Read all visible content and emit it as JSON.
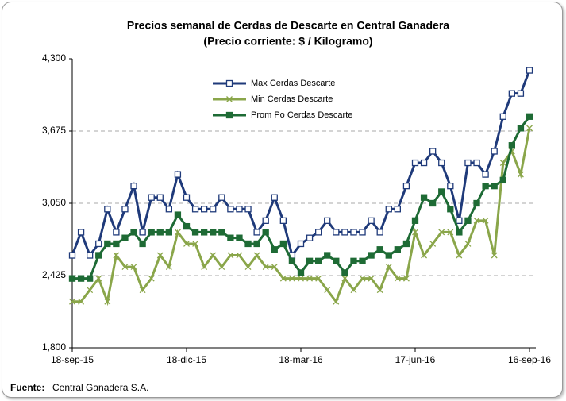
{
  "chart_data": {
    "type": "line",
    "title": "Precios semanal de Cerdas de Descarte en Central Ganadera",
    "subtitle": "(Precio corriente: $ / Kilogramo)",
    "categories": [
      "18-sep-15",
      null,
      null,
      null,
      null,
      null,
      null,
      null,
      null,
      null,
      null,
      null,
      null,
      "18-dic-15",
      null,
      null,
      null,
      null,
      null,
      null,
      null,
      null,
      null,
      null,
      null,
      null,
      "18-mar-16",
      null,
      null,
      null,
      null,
      null,
      null,
      null,
      null,
      null,
      null,
      null,
      null,
      "17-jun-16",
      null,
      null,
      null,
      null,
      null,
      null,
      null,
      null,
      null,
      null,
      null,
      null,
      "16-sep-16"
    ],
    "series": [
      {
        "name": "Max Cerdas Descarte",
        "color": "#1f3a7a",
        "marker": "square-open",
        "values": [
          2600,
          2800,
          2600,
          2700,
          3000,
          2800,
          3000,
          3200,
          2800,
          3100,
          3100,
          3000,
          3300,
          3100,
          3000,
          3000,
          3000,
          3100,
          3000,
          3000,
          3000,
          2800,
          2900,
          3100,
          2900,
          2600,
          2700,
          2750,
          2800,
          2900,
          2800,
          2800,
          2800,
          2800,
          2900,
          2800,
          3000,
          3000,
          3200,
          3400,
          3400,
          3500,
          3400,
          3200,
          2900,
          3400,
          3400,
          3300,
          3500,
          3800,
          4000,
          4000,
          4200
        ]
      },
      {
        "name": "Min Cerdas Descarte",
        "color": "#8aa64a",
        "marker": "x",
        "values": [
          2200,
          2200,
          2300,
          2400,
          2200,
          2600,
          2500,
          2500,
          2300,
          2400,
          2600,
          2500,
          2800,
          2700,
          2700,
          2500,
          2600,
          2500,
          2600,
          2600,
          2500,
          2600,
          2500,
          2500,
          2400,
          2400,
          2400,
          2400,
          2400,
          2300,
          2200,
          2400,
          2300,
          2400,
          2400,
          2300,
          2500,
          2400,
          2400,
          2800,
          2600,
          2700,
          2800,
          2800,
          2600,
          2700,
          2900,
          2900,
          2600,
          3400,
          3500,
          3300,
          3700
        ]
      },
      {
        "name": "Prom Po Cerdas Descarte",
        "color": "#1e6b35",
        "marker": "square",
        "values": [
          2400,
          2400,
          2400,
          2600,
          2700,
          2700,
          2750,
          2800,
          2700,
          2800,
          2800,
          2800,
          2950,
          2850,
          2800,
          2800,
          2800,
          2800,
          2750,
          2750,
          2700,
          2700,
          2800,
          2650,
          2700,
          2550,
          2450,
          2550,
          2550,
          2600,
          2550,
          2450,
          2550,
          2550,
          2600,
          2650,
          2600,
          2650,
          2700,
          2900,
          3100,
          3050,
          3150,
          3000,
          2800,
          2900,
          3050,
          3200,
          3200,
          3250,
          3550,
          3700,
          3800
        ]
      }
    ],
    "ylim": [
      1800,
      4300
    ],
    "yticks": [
      {
        "value": 1800,
        "label": "1,800"
      },
      {
        "value": 2425,
        "label": "2,425"
      },
      {
        "value": 3050,
        "label": "3,050"
      },
      {
        "value": 3675,
        "label": "3,675"
      },
      {
        "value": 4300,
        "label": "4,300"
      }
    ],
    "grid": true,
    "legend": "top-center",
    "source_label": "Fuente:",
    "source": "Central Ganadera S.A."
  }
}
